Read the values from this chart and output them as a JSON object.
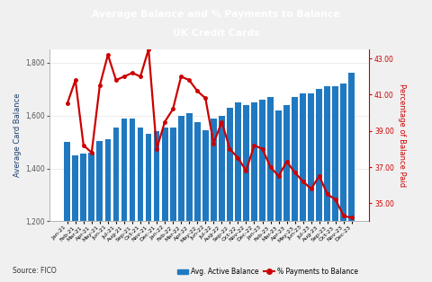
{
  "title_line1": "Average Balance and % Payments to Balance",
  "title_line2": "UK Credit Cards",
  "title_bg_color": "#1b3f6e",
  "title_text_color": "#ffffff",
  "bar_color": "#2079c0",
  "line_color": "#cc0000",
  "ylabel_left": "Average Card Balance",
  "ylabel_right": "Percentage of Balance Paid",
  "source": "Source: FICO",
  "legend_bar": "Avg. Active Balance",
  "legend_line": "% Payments to Balance",
  "categories": [
    "Jan-21",
    "Feb-21",
    "Mar-21",
    "Apr-21",
    "May-21",
    "Jun-21",
    "Jul-21",
    "Aug-21",
    "Sep-21",
    "Oct-21",
    "Nov-21",
    "Dec-21",
    "Jan-22",
    "Feb-22",
    "Mar-22",
    "Apr-22",
    "May-22",
    "Jun-22",
    "Jul-22",
    "Aug-22",
    "Sep-22",
    "Oct-22",
    "Nov-22",
    "Dec-22",
    "Jan-23",
    "Feb-23",
    "Mar-23",
    "Apr-23",
    "May-23",
    "Jun-23",
    "Jul-23",
    "Aug-23",
    "Sep-23",
    "Oct-23",
    "Nov-23",
    "Dec-23"
  ],
  "bar_values": [
    1500,
    1450,
    1455,
    1460,
    1505,
    1510,
    1555,
    1590,
    1590,
    1555,
    1530,
    1540,
    1555,
    1555,
    1600,
    1610,
    1575,
    1545,
    1590,
    1600,
    1630,
    1650,
    1640,
    1650,
    1660,
    1670,
    1620,
    1640,
    1670,
    1685,
    1685,
    1700,
    1710,
    1710,
    1720,
    1760
  ],
  "line_values": [
    40.5,
    41.8,
    38.2,
    37.8,
    41.5,
    43.2,
    41.8,
    42.0,
    42.2,
    42.0,
    43.5,
    38.0,
    39.5,
    40.2,
    42.0,
    41.8,
    41.2,
    40.8,
    38.3,
    39.5,
    38.0,
    37.5,
    36.8,
    38.2,
    38.0,
    37.0,
    36.5,
    37.3,
    36.7,
    36.2,
    35.8,
    36.5,
    35.5,
    35.2,
    34.3,
    34.2
  ],
  "ylim_left": [
    1200,
    1850
  ],
  "ylim_right": [
    34.0,
    43.5
  ],
  "yticks_left": [
    1200,
    1400,
    1600,
    1800
  ],
  "yticks_right": [
    35,
    37,
    39,
    41,
    43
  ],
  "bg_color": "#f0f0f0",
  "plot_bg_color": "#ffffff"
}
